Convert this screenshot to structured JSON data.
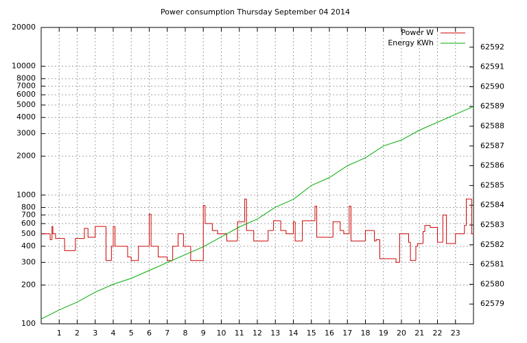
{
  "chart_data": {
    "type": "line",
    "title": "Power consumption Thursday September 04 2014",
    "xlim": [
      0,
      24
    ],
    "xticks": [
      1,
      2,
      3,
      4,
      5,
      6,
      7,
      8,
      9,
      10,
      11,
      12,
      13,
      14,
      15,
      16,
      17,
      18,
      19,
      20,
      21,
      22,
      23
    ],
    "ylim": [
      100,
      20000
    ],
    "log_y": true,
    "yticks": [
      100,
      200,
      300,
      400,
      500,
      600,
      700,
      800,
      1000,
      2000,
      3000,
      4000,
      5000,
      6000,
      7000,
      8000,
      10000,
      20000
    ],
    "y2lim": [
      62578,
      62593
    ],
    "y2ticks": [
      62579,
      62580,
      62581,
      62582,
      62583,
      62584,
      62585,
      62586,
      62587,
      62588,
      62589,
      62590,
      62591,
      62592
    ],
    "grid": true,
    "legend": "top-right",
    "series": [
      {
        "name": "Power W",
        "color": "#cc0000",
        "style": "steps",
        "x": [
          0,
          0.5,
          0.6,
          0.65,
          0.8,
          1.3,
          1.9,
          2.4,
          2.6,
          2.95,
          3.0,
          3.6,
          3.9,
          4.0,
          4.1,
          4.8,
          5.0,
          5.4,
          5.95,
          6.0,
          6.1,
          6.5,
          7.0,
          7.3,
          7.6,
          7.9,
          8.3,
          8.95,
          9.0,
          9.1,
          9.5,
          9.8,
          10.3,
          10.9,
          11.25,
          11.3,
          11.4,
          11.8,
          12.6,
          12.9,
          13.3,
          13.6,
          13.95,
          14.0,
          14.1,
          14.5,
          15.15,
          15.2,
          15.3,
          16.2,
          16.6,
          16.8,
          17.05,
          17.1,
          17.2,
          18.0,
          18.5,
          18.6,
          18.8,
          19.7,
          19.9,
          20.4,
          20.5,
          20.8,
          20.9,
          21.2,
          21.3,
          21.6,
          22.0,
          22.25,
          22.3,
          22.5,
          23.0,
          23.5,
          23.55,
          23.6,
          23.9
        ],
        "values": [
          500,
          450,
          570,
          500,
          460,
          370,
          460,
          550,
          470,
          470,
          570,
          310,
          400,
          570,
          400,
          330,
          310,
          400,
          400,
          710,
          400,
          330,
          310,
          400,
          500,
          400,
          310,
          310,
          830,
          600,
          530,
          500,
          440,
          620,
          620,
          930,
          530,
          440,
          530,
          630,
          530,
          500,
          500,
          620,
          440,
          630,
          630,
          820,
          470,
          620,
          530,
          500,
          500,
          820,
          440,
          530,
          440,
          450,
          320,
          300,
          500,
          430,
          310,
          400,
          420,
          520,
          580,
          560,
          430,
          430,
          700,
          420,
          500,
          580,
          580,
          930,
          500
        ]
      },
      {
        "name": "Energy KWh",
        "color": "#00aa00",
        "axis": "y2",
        "x": [
          0,
          1,
          2,
          3,
          4,
          5,
          6,
          7,
          8,
          9,
          10,
          11,
          12,
          13,
          14,
          15,
          16,
          17,
          18,
          19,
          20,
          21,
          22,
          23,
          24
        ],
        "values": [
          62578.24,
          62578.7,
          62579.1,
          62579.6,
          62580.0,
          62580.3,
          62580.7,
          62581.1,
          62581.5,
          62581.9,
          62582.4,
          62582.9,
          62583.3,
          62583.9,
          62584.3,
          62585.0,
          62585.4,
          62586.0,
          62586.4,
          62587.0,
          62587.3,
          62587.8,
          62588.2,
          62588.6,
          62589.0
        ]
      }
    ]
  }
}
